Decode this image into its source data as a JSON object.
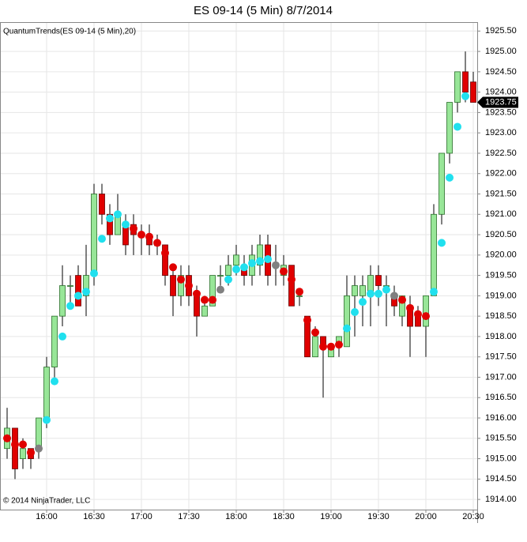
{
  "chart_data": {
    "type": "candlestick",
    "title": "ES 09-14 (5 Min)  8/7/2014",
    "indicator_label": "QuantumTrends(ES 09-14 (5 Min),20)",
    "copyright": "© 2014 NinjaTrader, LLC",
    "categories": [
      null,
      null,
      null,
      null,
      null,
      "16:00",
      null,
      null,
      null,
      null,
      null,
      "16:30",
      null,
      null,
      null,
      null,
      null,
      "17:00",
      null,
      null,
      null,
      null,
      null,
      "17:30",
      null,
      null,
      null,
      null,
      null,
      "18:00",
      null,
      null,
      null,
      null,
      null,
      "18:30",
      null,
      null,
      null,
      null,
      null,
      "19:00",
      null,
      null,
      null,
      null,
      null,
      "19:30",
      null,
      null,
      null,
      null,
      null,
      "20:00",
      null,
      null,
      null,
      null,
      null,
      "20:30"
    ],
    "open": [
      1915.25,
      1915.75,
      1915.0,
      1915.25,
      1915.25,
      1916.0,
      1917.25,
      1918.5,
      1919.25,
      1919.5,
      1919.0,
      1919.5,
      1921.5,
      1921.0,
      1920.5,
      1920.75,
      1920.75,
      1920.5,
      1920.5,
      1920.25,
      1920.25,
      1919.5,
      1919.0,
      1919.5,
      1919.0,
      1918.5,
      1918.75,
      1919.5,
      1919.5,
      1919.75,
      1919.75,
      1919.5,
      1919.75,
      1920.25,
      1919.75,
      1919.5,
      1919.75,
      1919.0,
      1918.5,
      1917.5,
      1918.0,
      1917.5,
      1917.75,
      1917.75,
      1919.0,
      1919.0,
      1919.0,
      1919.5,
      1919.25,
      1919.0,
      1918.5,
      1918.75,
      1918.5,
      1918.25,
      1919.0,
      1921.0,
      1922.5,
      1923.75,
      1924.5,
      1924.25
    ],
    "high": [
      1916.25,
      1915.75,
      1915.5,
      1915.25,
      1916.0,
      1917.5,
      1918.5,
      1919.75,
      1919.5,
      1919.75,
      1920.25,
      1921.75,
      1921.75,
      1921.25,
      1921.5,
      1921.0,
      1921.0,
      1920.75,
      1920.75,
      1920.5,
      1920.25,
      1919.75,
      1919.75,
      1919.75,
      1919.25,
      1919.0,
      1919.5,
      1919.75,
      1920.0,
      1920.25,
      1920.0,
      1920.25,
      1920.5,
      1920.5,
      1920.25,
      1920.0,
      1919.75,
      1919.0,
      1918.5,
      1918.25,
      1918.0,
      1917.75,
      1918.0,
      1919.5,
      1919.5,
      1919.5,
      1919.75,
      1919.75,
      1919.5,
      1919.25,
      1919.0,
      1919.0,
      1918.75,
      1919.0,
      1921.25,
      1922.5,
      1923.75,
      1924.5,
      1925.0,
      1924.5
    ],
    "low": [
      1915.0,
      1914.5,
      1914.75,
      1914.75,
      1915.0,
      1915.75,
      1917.0,
      1918.25,
      1918.75,
      1918.75,
      1918.5,
      1919.25,
      1920.75,
      1920.25,
      1920.5,
      1920.0,
      1920.0,
      1920.0,
      1920.0,
      1920.0,
      1919.25,
      1918.5,
      1918.75,
      1918.75,
      1918.0,
      1918.5,
      1918.75,
      1919.25,
      1919.25,
      1919.5,
      1919.25,
      1919.25,
      1919.5,
      1919.25,
      1919.25,
      1919.25,
      1918.75,
      1918.75,
      1917.5,
      1917.5,
      1916.5,
      1917.5,
      1917.5,
      1917.75,
      1918.0,
      1918.25,
      1918.25,
      1918.75,
      1918.25,
      1918.5,
      1918.25,
      1917.5,
      1918.25,
      1917.5,
      1919.0,
      1920.75,
      1922.25,
      1923.5,
      1923.75,
      1923.75
    ],
    "close": [
      1915.75,
      1914.75,
      1915.25,
      1915.0,
      1916.0,
      1917.25,
      1918.5,
      1919.25,
      1919.25,
      1918.75,
      1919.5,
      1921.5,
      1921.0,
      1920.5,
      1921.0,
      1920.25,
      1920.5,
      1920.5,
      1920.25,
      1920.25,
      1919.5,
      1919.0,
      1919.5,
      1919.0,
      1918.5,
      1918.75,
      1919.5,
      1919.5,
      1919.75,
      1920.0,
      1919.5,
      1920.0,
      1920.25,
      1919.5,
      1919.75,
      1919.75,
      1918.75,
      1919.0,
      1917.5,
      1918.0,
      1917.75,
      1917.75,
      1918.0,
      1919.0,
      1919.25,
      1919.25,
      1919.5,
      1919.25,
      1919.25,
      1918.75,
      1919.0,
      1918.25,
      1918.25,
      1919.0,
      1921.0,
      1922.5,
      1923.75,
      1924.5,
      1924.0,
      1923.75
    ],
    "up_color": "#98e698",
    "down_color": "#e00000",
    "dots": {
      "values": [
        1915.5,
        1915.35,
        1915.35,
        1915.15,
        1915.25,
        1915.95,
        1916.9,
        1918.0,
        1918.75,
        1919.0,
        1919.1,
        1919.55,
        1920.4,
        1920.9,
        1921.0,
        1920.75,
        1920.65,
        1920.5,
        1920.45,
        1920.3,
        1920.05,
        1919.7,
        1919.4,
        1919.25,
        1919.05,
        1918.9,
        1918.9,
        1919.15,
        1919.4,
        1919.65,
        1919.7,
        1919.8,
        1919.85,
        1919.9,
        1919.75,
        1919.6,
        1919.4,
        1919.1,
        1918.4,
        1918.1,
        1917.75,
        1917.75,
        1917.8,
        1918.2,
        1918.6,
        1918.85,
        1919.05,
        1919.05,
        1919.15,
        1919.0,
        1918.9,
        1918.7,
        1918.55,
        1918.5,
        1919.1,
        1920.3,
        1921.9,
        1923.15,
        1923.9,
        null
      ],
      "colors": [
        "#e00000",
        "#e00000",
        "#e00000",
        "#e00000",
        "#808080",
        "#20e0ee",
        "#20e0ee",
        "#20e0ee",
        "#20e0ee",
        "#20e0ee",
        "#20e0ee",
        "#20e0ee",
        "#20e0ee",
        "#20e0ee",
        "#20e0ee",
        "#20e0ee",
        "#e00000",
        "#e00000",
        "#e00000",
        "#e00000",
        "#e00000",
        "#e00000",
        "#e00000",
        "#e00000",
        "#e00000",
        "#e00000",
        "#e00000",
        "#808080",
        "#20e0ee",
        "#20e0ee",
        "#20e0ee",
        "#20e0ee",
        "#20e0ee",
        "#20e0ee",
        "#808080",
        "#e00000",
        "#e00000",
        "#e00000",
        "#e00000",
        "#e00000",
        "#e00000",
        "#e00000",
        "#e00000",
        "#20e0ee",
        "#20e0ee",
        "#20e0ee",
        "#20e0ee",
        "#20e0ee",
        "#20e0ee",
        "#808080",
        "#e00000",
        "#e00000",
        "#e00000",
        "#e00000",
        "#20e0ee",
        "#20e0ee",
        "#20e0ee",
        "#20e0ee",
        "#20e0ee",
        null
      ]
    },
    "last_price": 1923.75,
    "ylim": [
      1913.75,
      1925.7
    ],
    "yticks": [
      {
        "value": 1914,
        "label": "1914.00"
      },
      {
        "value": 1914.5,
        "label": "1914.50"
      },
      {
        "value": 1915,
        "label": "1915.00"
      },
      {
        "value": 1915.5,
        "label": "1915.50"
      },
      {
        "value": 1916,
        "label": "1916.00"
      },
      {
        "value": 1916.5,
        "label": "1916.50"
      },
      {
        "value": 1917,
        "label": "1917.00"
      },
      {
        "value": 1917.5,
        "label": "1917.50"
      },
      {
        "value": 1918,
        "label": "1918.00"
      },
      {
        "value": 1918.5,
        "label": "1918.50"
      },
      {
        "value": 1919,
        "label": "1919.00"
      },
      {
        "value": 1919.5,
        "label": "1919.50"
      },
      {
        "value": 1920,
        "label": "1920.00"
      },
      {
        "value": 1920.5,
        "label": "1920.50"
      },
      {
        "value": 1921,
        "label": "1921.00"
      },
      {
        "value": 1921.5,
        "label": "1921.50"
      },
      {
        "value": 1922,
        "label": "1922.00"
      },
      {
        "value": 1922.5,
        "label": "1922.50"
      },
      {
        "value": 1923,
        "label": "1923.00"
      },
      {
        "value": 1923.5,
        "label": "1923.50"
      },
      {
        "value": 1924,
        "label": "1924.00"
      },
      {
        "value": 1924.5,
        "label": "1924.50"
      },
      {
        "value": 1925,
        "label": "1925.00"
      },
      {
        "value": 1925.5,
        "label": "1925.50"
      }
    ],
    "grid": true
  }
}
